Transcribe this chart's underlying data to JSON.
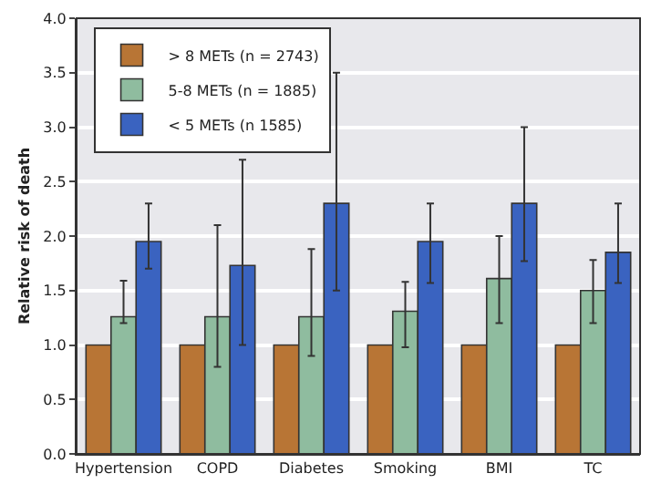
{
  "chart_data": {
    "type": "bar",
    "ylabel": "Relative risk of death",
    "categories": [
      "Hypertension",
      "COPD",
      "Diabetes",
      "Smoking",
      "BMI",
      "TC"
    ],
    "series": [
      {
        "name": "> 8 METs (n = 2743)",
        "color": "#b87535",
        "values": [
          1,
          1,
          1,
          1,
          1,
          1
        ]
      },
      {
        "name": "5-8 METs (n = 1885)",
        "color": "#8fbc9f",
        "values": [
          1.26,
          1.26,
          1.26,
          1.31,
          1.61,
          1.5
        ],
        "errors": [
          [
            1.2,
            1.59
          ],
          [
            0.8,
            2.1
          ],
          [
            0.9,
            1.88
          ],
          [
            0.98,
            1.58
          ],
          [
            1.2,
            2.0
          ],
          [
            1.2,
            1.78
          ]
        ]
      },
      {
        "name": "< 5 METs (n 1585)",
        "color": "#3a63c0",
        "values": [
          1.95,
          1.73,
          2.3,
          1.95,
          2.3,
          1.85
        ],
        "errors": [
          [
            1.7,
            2.3
          ],
          [
            1.0,
            2.7
          ],
          [
            1.5,
            3.5
          ],
          [
            1.57,
            2.3
          ],
          [
            1.77,
            3.0
          ],
          [
            1.57,
            2.3
          ]
        ]
      }
    ],
    "ylim": [
      0,
      4
    ],
    "yticks": [
      {
        "value": 0,
        "label": "0.0"
      },
      {
        "value": 0.5,
        "label": "0.5"
      },
      {
        "value": 1,
        "label": "1.0"
      },
      {
        "value": 1.5,
        "label": "1.5"
      },
      {
        "value": 2,
        "label": "2.0"
      },
      {
        "value": 2.5,
        "label": "2.5"
      },
      {
        "value": 3,
        "label": "3.0"
      },
      {
        "value": 3.5,
        "label": "3.5"
      },
      {
        "value": 4,
        "label": "4.0"
      }
    ],
    "grid": "y",
    "legend": "top left"
  }
}
